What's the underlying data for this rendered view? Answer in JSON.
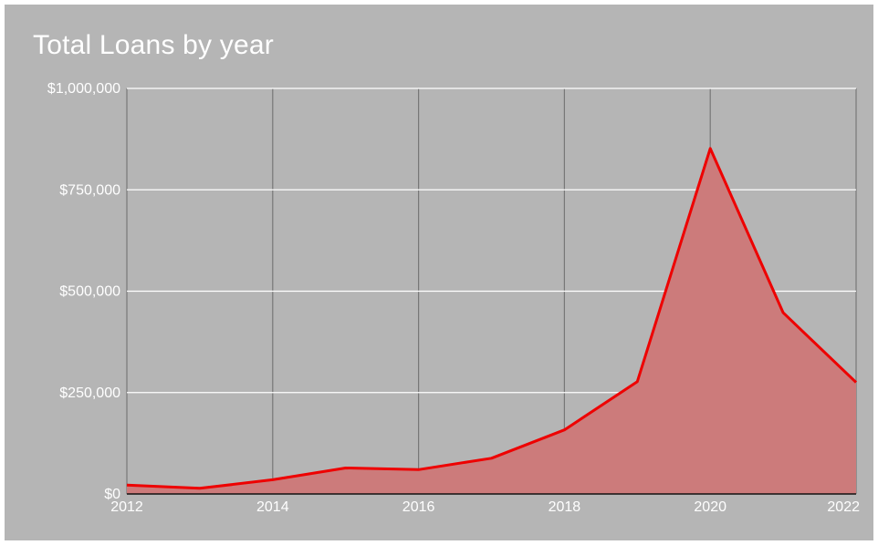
{
  "chart_data": {
    "type": "area",
    "title": "Total Loans by year",
    "xlabel": "",
    "ylabel": "",
    "x": [
      2012,
      2013,
      2014,
      2015,
      2016,
      2017,
      2018,
      2019,
      2020,
      2021,
      2022
    ],
    "series": [
      {
        "values": [
          22000,
          14000,
          35000,
          64000,
          60000,
          88000,
          158000,
          277000,
          852000,
          447000,
          275000
        ]
      }
    ],
    "xlim": [
      2012,
      2022
    ],
    "ylim": [
      0,
      1000000
    ],
    "x_ticks": [
      2012,
      2014,
      2016,
      2018,
      2020,
      2022
    ],
    "x_tick_labels": [
      "2012",
      "2014",
      "2016",
      "2018",
      "2020",
      "2022"
    ],
    "y_ticks": [
      0,
      250000,
      500000,
      750000,
      1000000
    ],
    "y_tick_labels": [
      "$0",
      "$250,000",
      "$500,000",
      "$750,000",
      "$1,000,000"
    ],
    "grid": true,
    "legend": "none",
    "colors": {
      "background": "#b5b5b5",
      "line": "#ee0000",
      "fill": "#cc7b7b",
      "gridline_horizontal": "#ffffff",
      "gridline_vertical": "#777777",
      "text": "#ffffff"
    }
  }
}
